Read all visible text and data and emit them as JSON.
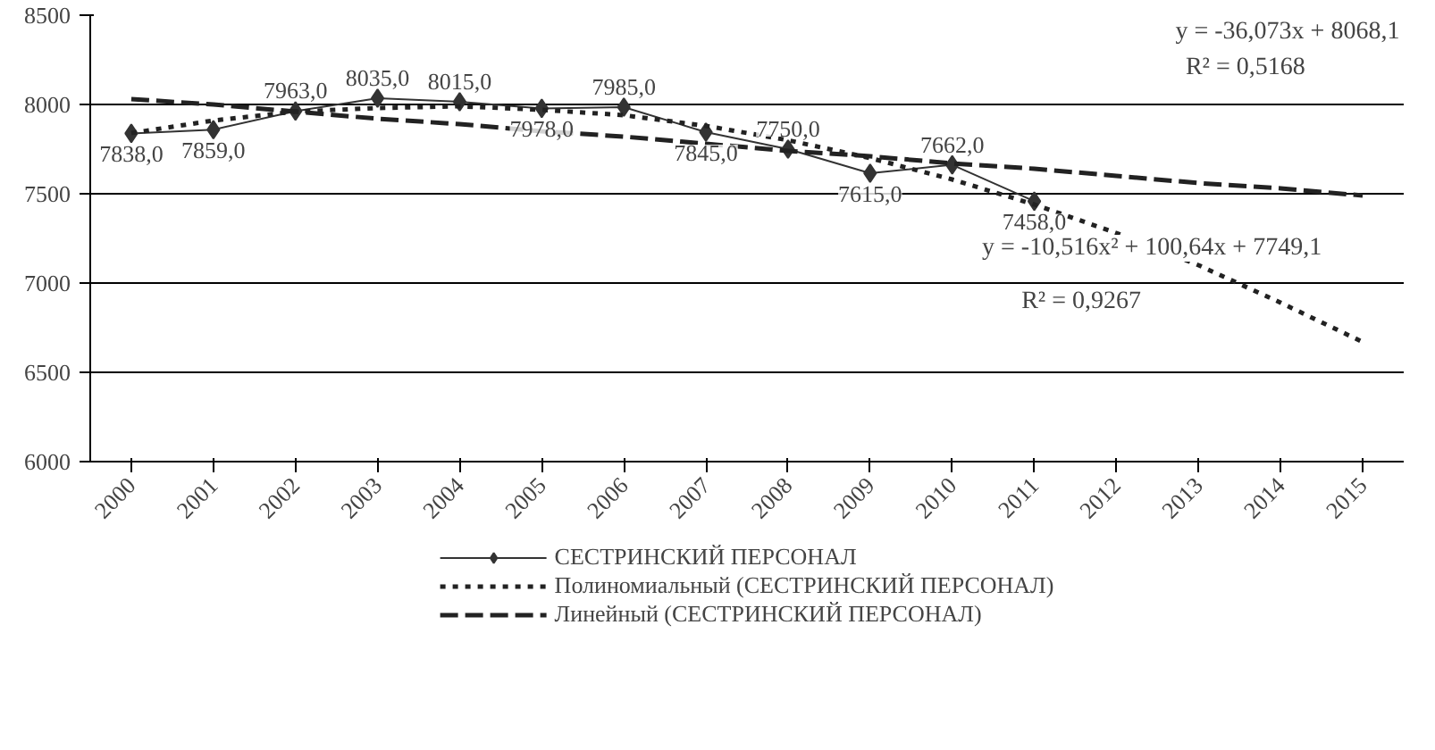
{
  "chart_data": {
    "type": "line",
    "categories": [
      "2000",
      "2001",
      "2002",
      "2003",
      "2004",
      "2005",
      "2006",
      "2007",
      "2008",
      "2009",
      "2010",
      "2011",
      "2012",
      "2013",
      "2014",
      "2015"
    ],
    "series": [
      {
        "name": "СЕСТРИНСКИЙ ПЕРСОНАЛ",
        "color": "#333333",
        "marker": "diamond",
        "line_style": "solid",
        "values": [
          7838,
          7859,
          7963,
          8035,
          8015,
          7978,
          7985,
          7845,
          7750,
          7615,
          7662,
          7458,
          null,
          null,
          null,
          null
        ],
        "value_labels": [
          "7838,0",
          "7859,0",
          "7963,0",
          "8035,0",
          "8015,0",
          "7978,0",
          "7985,0",
          "7845,0",
          "7750,0",
          "7615,0",
          "7662,0",
          "7458,0",
          null,
          null,
          null,
          null
        ]
      },
      {
        "name": "Полиномиальный (СЕСТРИНСКИЙ ПЕРСОНАЛ)",
        "color": "#222222",
        "marker": "none",
        "line_style": "dotted",
        "values": [
          7840,
          7910,
          7960,
          7980,
          7990,
          7970,
          7940,
          7880,
          7800,
          7700,
          7580,
          7440,
          7280,
          7100,
          6890,
          6670
        ]
      },
      {
        "name": "Линейный (СЕСТРИНСКИЙ ПЕРСОНАЛ)",
        "color": "#222222",
        "marker": "none",
        "line_style": "dashed",
        "values": [
          8030,
          8000,
          7960,
          7920,
          7890,
          7850,
          7820,
          7780,
          7740,
          7710,
          7670,
          7640,
          7600,
          7560,
          7530,
          7490
        ]
      }
    ],
    "ylim": [
      6000,
      8500
    ],
    "yticks": [
      6000,
      6500,
      7000,
      7500,
      8000,
      8500
    ],
    "grid": "y",
    "legend": "bottom",
    "annotations": [
      "y = -36,073x + 8068,1",
      "R² = 0,5168",
      "y = -10,516x² + 100,64x + 7749,1",
      "R² = 0,9267"
    ]
  }
}
